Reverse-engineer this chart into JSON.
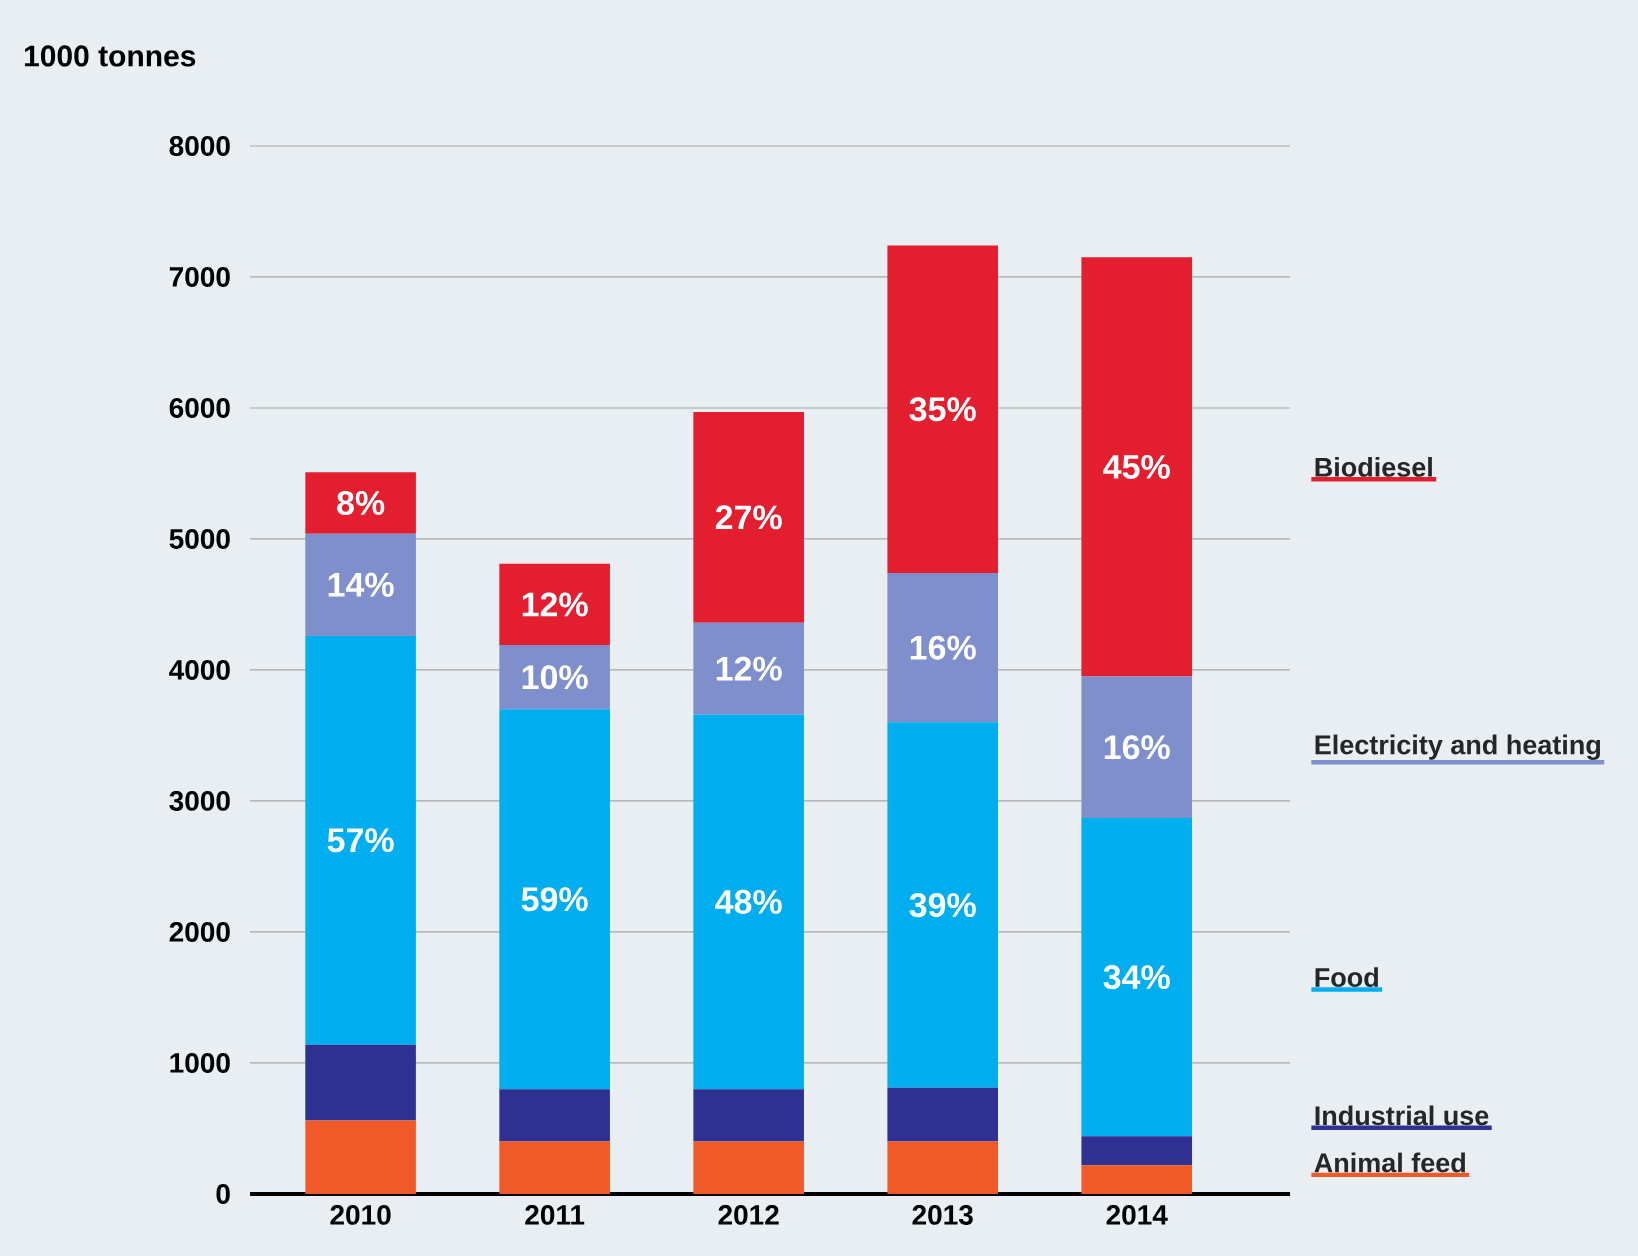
{
  "chart_data": {
    "type": "bar",
    "stacked": true,
    "ylabel": "1000 tonnes",
    "categories": [
      "2010",
      "2011",
      "2012",
      "2013",
      "2014"
    ],
    "series": [
      {
        "name": "Animal feed",
        "color": "#f05a28",
        "values": [
          560,
          400,
          400,
          400,
          220
        ]
      },
      {
        "name": "Industrial use",
        "color": "#2e3192",
        "values": [
          580,
          400,
          400,
          410,
          220
        ]
      },
      {
        "name": "Food",
        "color": "#00aeef",
        "values": [
          3120,
          2900,
          2860,
          2790,
          2430
        ]
      },
      {
        "name": "Electricity and heating",
        "color": "#7f8fcb",
        "values": [
          780,
          490,
          700,
          1140,
          1080
        ]
      },
      {
        "name": "Biodiesel",
        "color": "#e31e2f",
        "values": [
          470,
          620,
          1610,
          2500,
          3200
        ]
      }
    ],
    "annotations": [
      "57%",
      "14%",
      "8%",
      "59%",
      "10%",
      "12%",
      "48%",
      "12%",
      "27%",
      "39%",
      "16%",
      "35%",
      "34%",
      "16%",
      "45%"
    ],
    "ylim": [
      0,
      8000
    ],
    "yticks": [
      0,
      1000,
      2000,
      3000,
      4000,
      5000,
      6000,
      7000,
      8000
    ],
    "grid": "y",
    "legend": "right"
  }
}
